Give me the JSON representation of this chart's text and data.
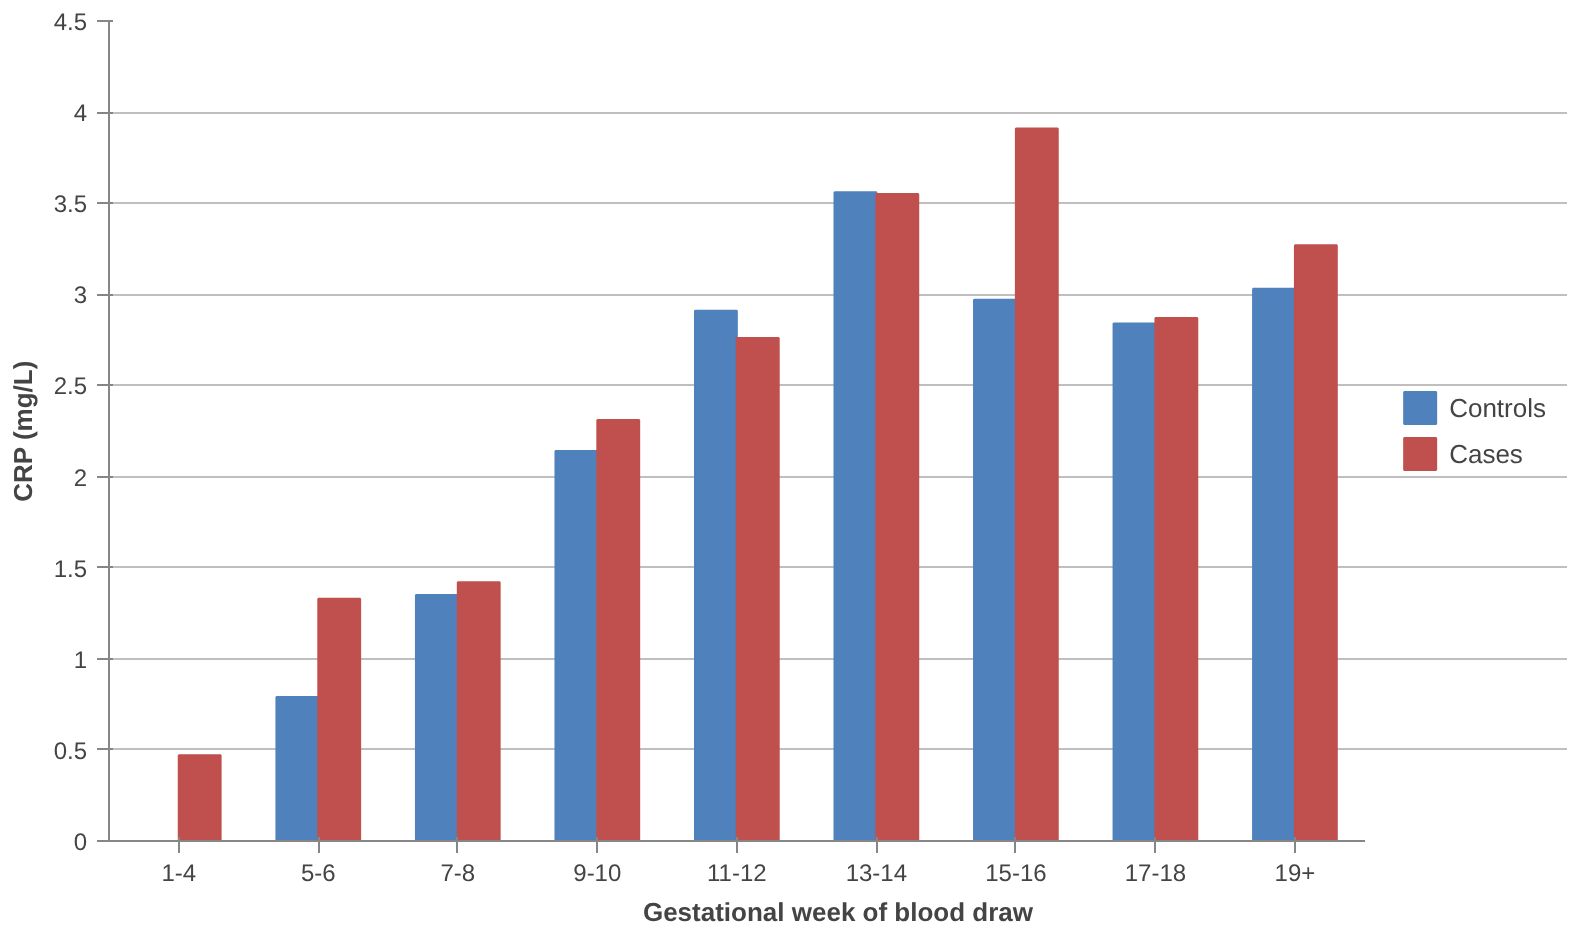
{
  "chart_data": {
    "type": "bar",
    "xlabel": "Gestational week of blood draw",
    "ylabel": "CRP (mg/L)",
    "categories": [
      "1-4",
      "5-6",
      "7-8",
      "9-10",
      "11-12",
      "13-14",
      "15-16",
      "17-18",
      "19+"
    ],
    "series": [
      {
        "name": "Controls",
        "color": "#4f81bd",
        "values": [
          null,
          0.79,
          1.35,
          2.14,
          2.91,
          3.56,
          2.97,
          2.84,
          3.03
        ]
      },
      {
        "name": "Cases",
        "color": "#c0504d",
        "values": [
          0.47,
          1.33,
          1.42,
          2.31,
          2.76,
          3.55,
          3.91,
          2.87,
          3.27
        ]
      }
    ],
    "ylim": [
      0,
      4.5
    ],
    "yticks": [
      0,
      0.5,
      1,
      1.5,
      2,
      2.5,
      3,
      3.5,
      4,
      4.5
    ],
    "grid": "y",
    "legend": "right"
  }
}
